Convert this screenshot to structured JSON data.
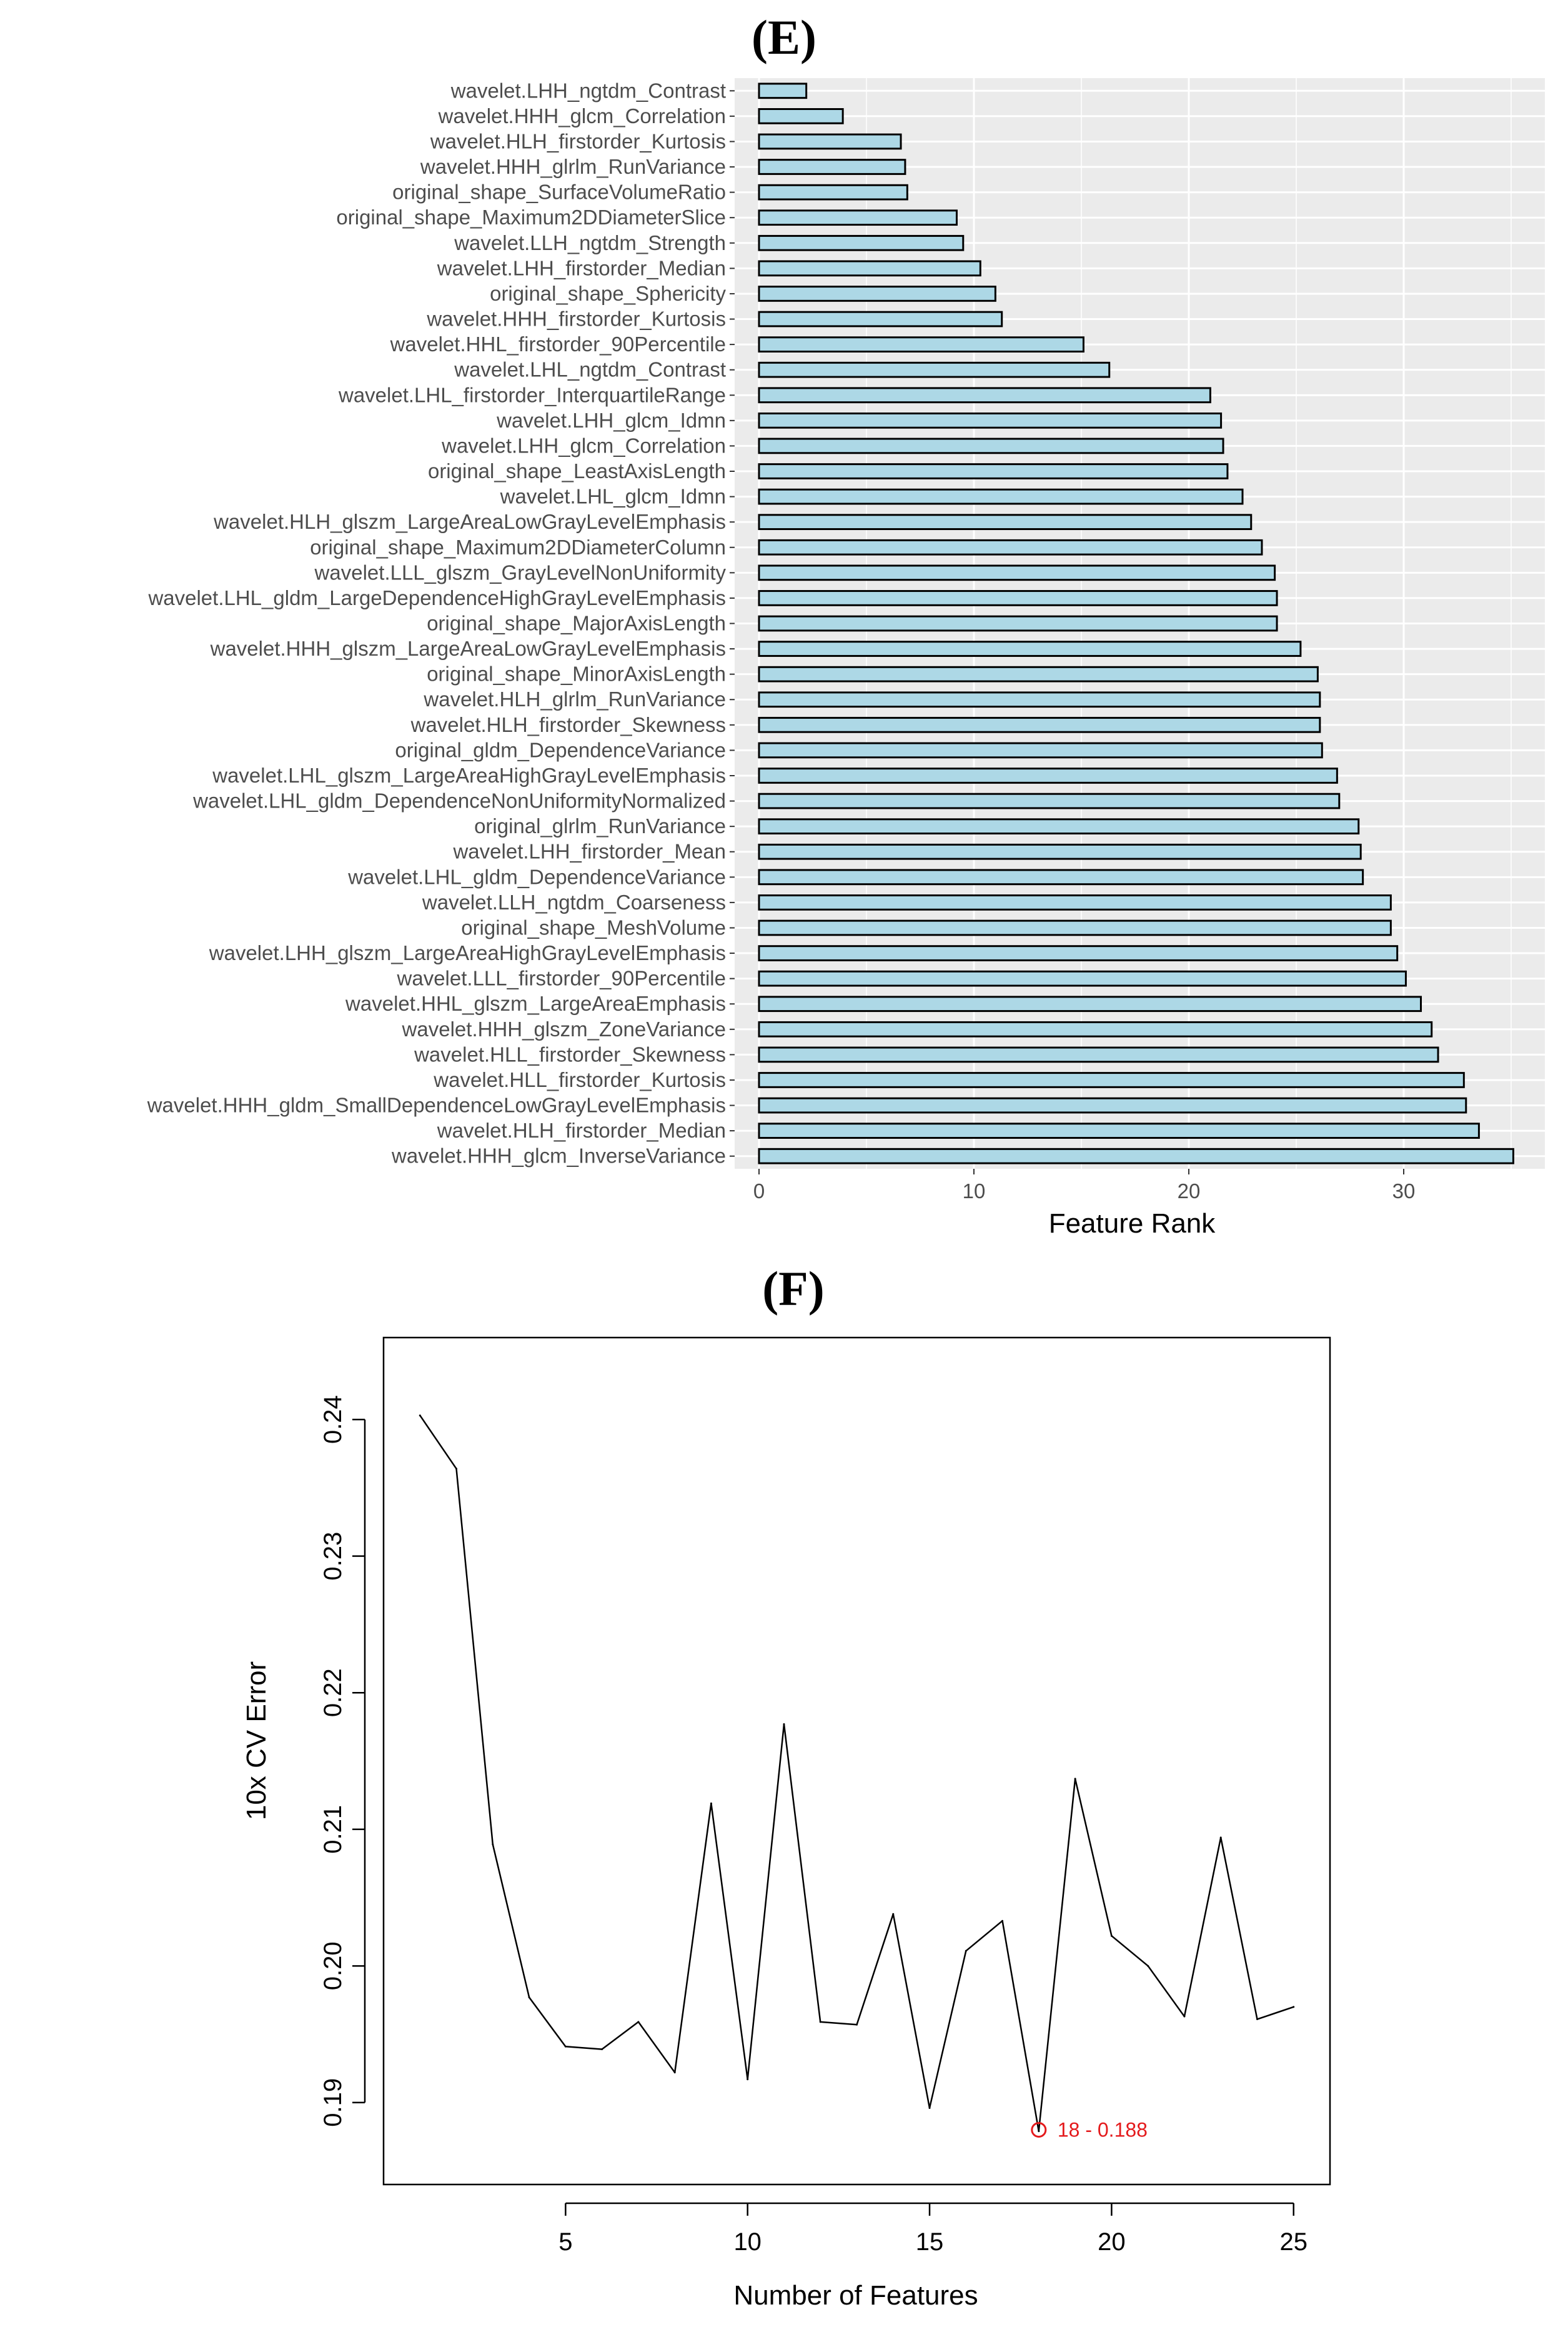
{
  "panels": {
    "e_label": "(E)",
    "f_label": "(F)"
  },
  "chart_data": [
    {
      "type": "bar",
      "orientation": "horizontal",
      "panel": "(E)",
      "xlabel": "Feature Rank",
      "ylabel": "",
      "xlim": [
        0,
        36
      ],
      "xticks": [
        0,
        10,
        20,
        30
      ],
      "grid": true,
      "colors": {
        "bar_fill": "#add8e6",
        "bar_stroke": "#000000",
        "panel_bg": "#ebebeb",
        "grid": "#ffffff"
      },
      "categories": [
        "wavelet.LHH_ngtdm_Contrast",
        "wavelet.HHH_glcm_Correlation",
        "wavelet.HLH_firstorder_Kurtosis",
        "wavelet.HHH_glrlm_RunVariance",
        "original_shape_SurfaceVolumeRatio",
        "original_shape_Maximum2DDiameterSlice",
        "wavelet.LLH_ngtdm_Strength",
        "wavelet.LHH_firstorder_Median",
        "original_shape_Sphericity",
        "wavelet.HHH_firstorder_Kurtosis",
        "wavelet.HHL_firstorder_90Percentile",
        "wavelet.LHL_ngtdm_Contrast",
        "wavelet.LHL_firstorder_InterquartileRange",
        "wavelet.LHH_glcm_Idmn",
        "wavelet.LHH_glcm_Correlation",
        "original_shape_LeastAxisLength",
        "wavelet.LHL_glcm_Idmn",
        "wavelet.HLH_glszm_LargeAreaLowGrayLevelEmphasis",
        "original_shape_Maximum2DDiameterColumn",
        "wavelet.LLL_glszm_GrayLevelNonUniformity",
        "wavelet.LHL_gldm_LargeDependenceHighGrayLevelEmphasis",
        "original_shape_MajorAxisLength",
        "wavelet.HHH_glszm_LargeAreaLowGrayLevelEmphasis",
        "original_shape_MinorAxisLength",
        "wavelet.HLH_glrlm_RunVariance",
        "wavelet.HLH_firstorder_Skewness",
        "original_gldm_DependenceVariance",
        "wavelet.LHL_glszm_LargeAreaHighGrayLevelEmphasis",
        "wavelet.LHL_gldm_DependenceNonUniformityNormalized",
        "original_glrlm_RunVariance",
        "wavelet.LHH_firstorder_Mean",
        "wavelet.LHL_gldm_DependenceVariance",
        "wavelet.LLH_ngtdm_Coarseness",
        "original_shape_MeshVolume",
        "wavelet.LHH_glszm_LargeAreaHighGrayLevelEmphasis",
        "wavelet.LLL_firstorder_90Percentile",
        "wavelet.HHL_glszm_LargeAreaEmphasis",
        "wavelet.HHH_glszm_ZoneVariance",
        "wavelet.HLL_firstorder_Skewness",
        "wavelet.HLL_firstorder_Kurtosis",
        "wavelet.HHH_gldm_SmallDependenceLowGrayLevelEmphasis",
        "wavelet.HLH_firstorder_Median",
        "wavelet.HHH_glcm_InverseVariance"
      ],
      "values": [
        2.2,
        3.9,
        6.6,
        6.8,
        6.9,
        9.2,
        9.5,
        10.3,
        11.0,
        11.3,
        15.1,
        16.3,
        21.0,
        21.5,
        21.6,
        21.8,
        22.5,
        22.9,
        23.4,
        24.0,
        24.1,
        24.1,
        25.2,
        26.0,
        26.1,
        26.1,
        26.2,
        26.9,
        27.0,
        27.9,
        28.0,
        28.1,
        29.4,
        29.4,
        29.7,
        30.1,
        30.8,
        31.3,
        31.6,
        32.8,
        32.9,
        33.5,
        35.1
      ]
    },
    {
      "type": "line",
      "panel": "(F)",
      "xlabel": "Number of Features",
      "ylabel": "10x CV Error",
      "xlim": [
        0,
        26
      ],
      "ylim": [
        0.184,
        0.246
      ],
      "xticks": [
        5,
        10,
        15,
        20,
        25
      ],
      "yticks": [
        "0.19",
        "0.20",
        "0.21",
        "0.22",
        "0.23",
        "0.24"
      ],
      "x": [
        1,
        2,
        3,
        4,
        5,
        6,
        7,
        8,
        9,
        10,
        11,
        12,
        13,
        14,
        15,
        16,
        17,
        18,
        19,
        20,
        21,
        22,
        23,
        24,
        25
      ],
      "y": [
        0.2403,
        0.2364,
        0.2089,
        0.1977,
        0.1941,
        0.1939,
        0.1959,
        0.1922,
        0.2119,
        0.1917,
        0.2177,
        0.1959,
        0.1957,
        0.2038,
        0.1896,
        0.2011,
        0.2033,
        0.1879,
        0.2137,
        0.2022,
        0.2,
        0.1963,
        0.2094,
        0.1961,
        0.197
      ],
      "highlight": {
        "x": 18,
        "y": 0.188,
        "label": "18 - 0.188",
        "color": "#e41a1c"
      },
      "grid": false
    }
  ]
}
